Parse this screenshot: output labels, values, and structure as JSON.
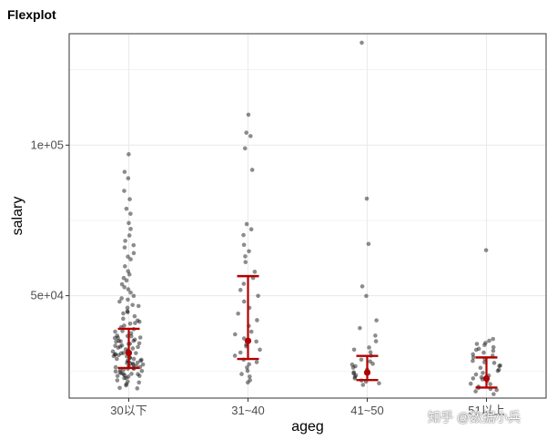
{
  "title": "Flexplot",
  "watermark": "知乎 @数据小兵",
  "colors": {
    "points": "#000000",
    "summary": "#b30000",
    "grid": "#ebebeb",
    "panel_border": "#333333"
  },
  "chart_data": {
    "type": "scatter",
    "title": "Flexplot",
    "xlabel": "ageg",
    "ylabel": "salary",
    "categories": [
      "30以下",
      "31~40",
      "41~50",
      "51以上"
    ],
    "y_ticks": [
      50000,
      100000
    ],
    "y_tick_labels": [
      "5e+04",
      "1e+05"
    ],
    "ylim": [
      16000,
      137000
    ],
    "grid": true,
    "groups": [
      {
        "category": "30以下",
        "values": [
          97000,
          91000,
          89000,
          85000,
          82000,
          79000,
          77000,
          74000,
          72000,
          70000,
          68000,
          67000,
          66000,
          64000,
          63000,
          62000,
          60000,
          58000,
          57000,
          56000,
          55000,
          54000,
          53000,
          52000,
          51000,
          50000,
          49000,
          48500,
          48000,
          47000,
          46500,
          46000,
          45000,
          44500,
          44000,
          43000,
          42500,
          42000,
          41500,
          41000,
          40500,
          40000,
          39500,
          39000,
          38500,
          38000,
          37500,
          37000,
          36800,
          36500,
          36200,
          36000,
          35800,
          35500,
          35200,
          35000,
          34800,
          34500,
          34200,
          34000,
          33800,
          33500,
          33300,
          33000,
          32800,
          32500,
          32300,
          32000,
          31800,
          31600,
          31400,
          31200,
          31000,
          30800,
          30600,
          30400,
          30200,
          30000,
          29800,
          29600,
          29400,
          29200,
          29000,
          28800,
          28600,
          28400,
          28200,
          28000,
          27800,
          27600,
          27400,
          27200,
          27000,
          26800,
          26600,
          26400,
          26200,
          26000,
          25800,
          25600,
          25400,
          25200,
          25000,
          24800,
          24600,
          24400,
          24200,
          24000,
          23800,
          23600,
          23400,
          23200,
          23000,
          22700,
          22400,
          22000,
          21500,
          21000,
          20500,
          20000,
          19500,
          19000
        ],
        "mean": 31000,
        "lower": 26000,
        "upper": 39000
      },
      {
        "category": "31~40",
        "values": [
          110000,
          104000,
          103000,
          99000,
          92000,
          74000,
          72000,
          70000,
          67000,
          65000,
          63000,
          61000,
          58000,
          56000,
          54000,
          52000,
          50000,
          48000,
          46000,
          44000,
          42000,
          40000,
          38000,
          37000,
          36000,
          35000,
          34000,
          33000,
          32000,
          31000,
          30000,
          29000,
          28000,
          27000,
          26000,
          25000,
          24000,
          23000,
          22000,
          21000
        ],
        "mean": 35000,
        "lower": 29000,
        "upper": 56500
      },
      {
        "category": "41~50",
        "values": [
          134000,
          82000,
          67000,
          53000,
          50000,
          42000,
          39000,
          37000,
          35000,
          33000,
          32000,
          31000,
          30000,
          29000,
          28000,
          27500,
          27000,
          26500,
          26000,
          25500,
          25000,
          24500,
          24000,
          23500,
          23000,
          22500,
          22000,
          21500,
          21000,
          20500
        ],
        "mean": 24500,
        "lower": 22000,
        "upper": 30000
      },
      {
        "category": "51以上",
        "values": [
          65000,
          35500,
          35000,
          34500,
          34000,
          33500,
          33000,
          32500,
          32000,
          31500,
          31000,
          30500,
          30000,
          29500,
          29000,
          28500,
          28000,
          27500,
          27000,
          26500,
          26000,
          25500,
          25000,
          24500,
          24000,
          23500,
          23000,
          22500,
          22000,
          21500,
          21000,
          20500,
          20000,
          19500,
          19000,
          18500,
          18000,
          17500
        ],
        "mean": 22500,
        "lower": 19500,
        "upper": 29500
      }
    ]
  }
}
